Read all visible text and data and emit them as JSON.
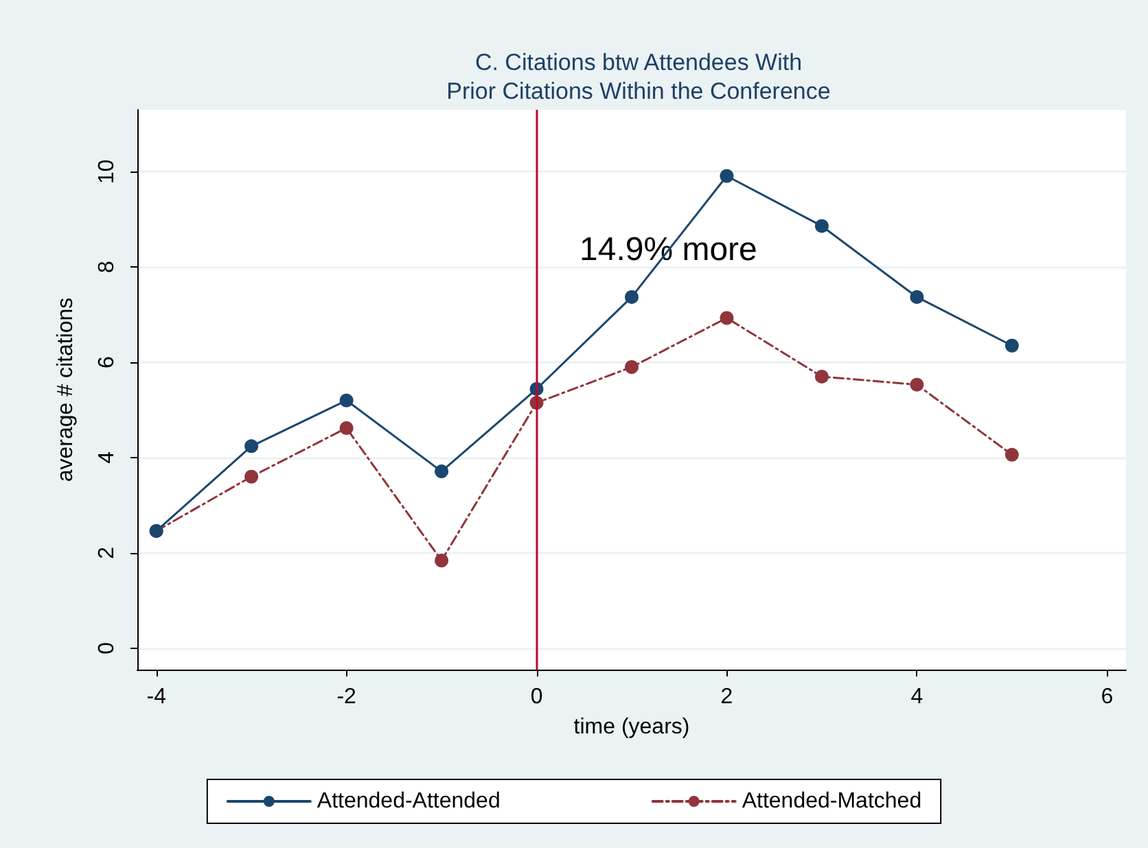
{
  "chart_data": {
    "type": "line",
    "title": "C. Citations btw Attendees With\nPrior Citations Within the Conference",
    "xlabel": "time (years)",
    "ylabel": "average # citations",
    "x": [
      -4,
      -3,
      -2,
      -1,
      0,
      1,
      2,
      3,
      4,
      5
    ],
    "series": [
      {
        "name": "Attended-Attended",
        "color": "#1a476f",
        "line_style": "solid",
        "values": [
          2.46,
          4.24,
          5.2,
          3.71,
          5.44,
          7.37,
          9.91,
          8.86,
          7.37,
          6.35
        ]
      },
      {
        "name": "Attended-Matched",
        "color": "#90353b",
        "line_style": "dashed",
        "values": [
          2.46,
          3.6,
          4.62,
          1.84,
          5.15,
          5.9,
          6.93,
          5.7,
          5.53,
          4.06
        ]
      }
    ],
    "xlim": [
      -4.2,
      6.2
    ],
    "xticks": [
      -4,
      -2,
      0,
      2,
      4,
      6
    ],
    "ylim": [
      -0.45,
      11.3
    ],
    "yticks": [
      0,
      2,
      4,
      6,
      8,
      10
    ],
    "ref_lines": [
      {
        "axis": "x",
        "value": 0,
        "color": "#c10534"
      }
    ],
    "annotations": [
      "14.9% more"
    ],
    "grid": "y",
    "legend": "bottom",
    "marker": "circle"
  }
}
